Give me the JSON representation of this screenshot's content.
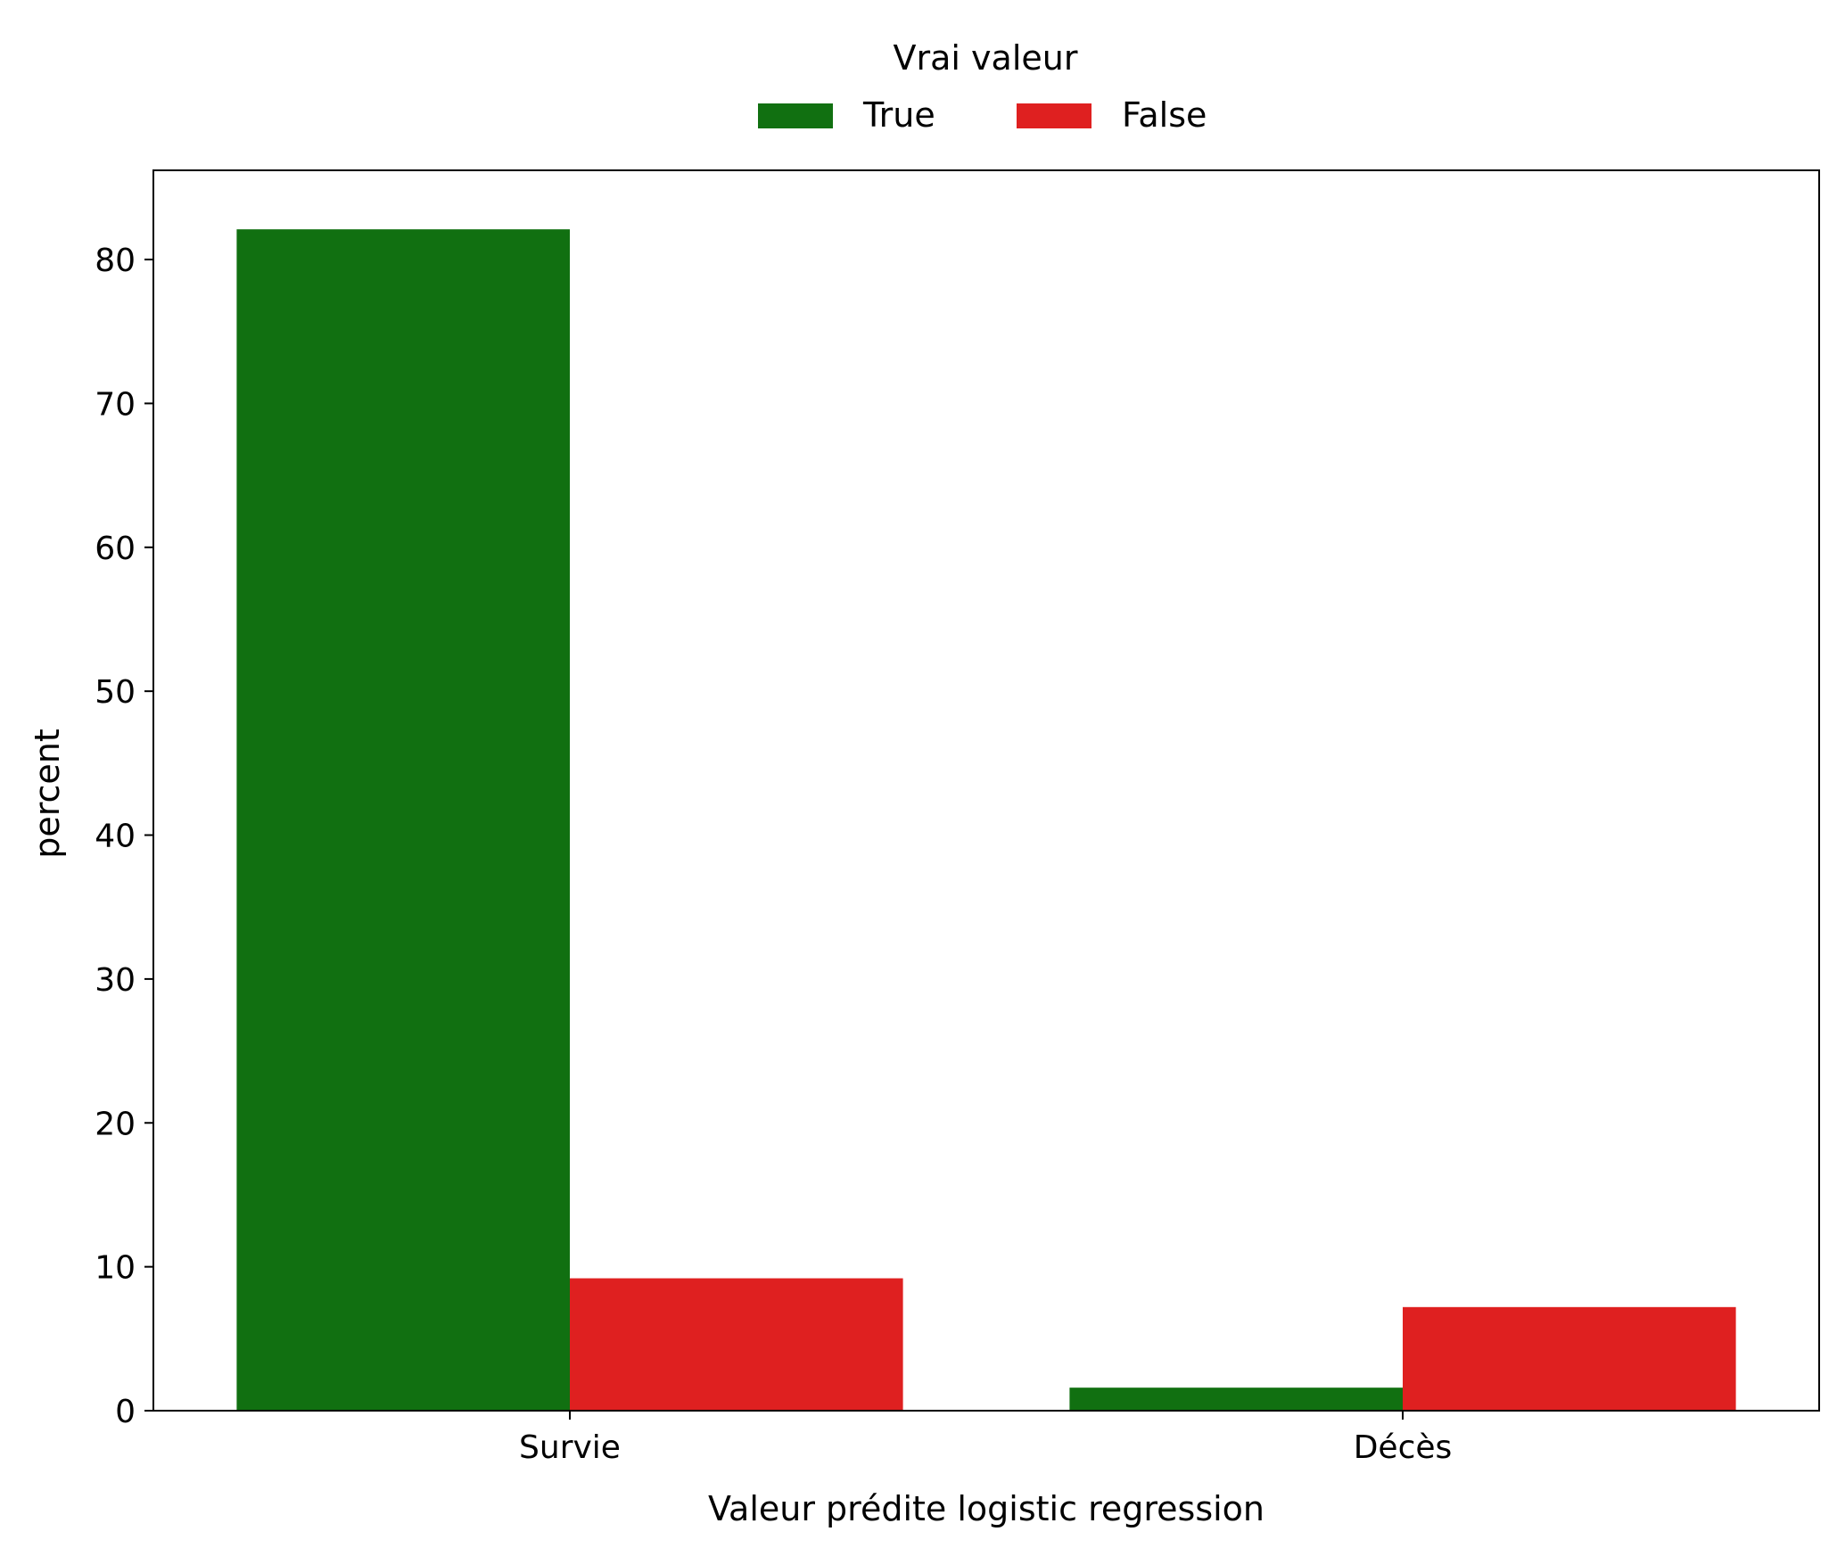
{
  "chart_data": {
    "type": "bar",
    "categories": [
      "Survie",
      "Décès"
    ],
    "series": [
      {
        "name": "True",
        "color": "#117011",
        "values": [
          82.1,
          1.6
        ]
      },
      {
        "name": "False",
        "color": "#df2020",
        "values": [
          9.2,
          7.2
        ]
      }
    ],
    "xlabel": "Valeur prédite logistic regression",
    "ylabel": "percent",
    "ylim": [
      0,
      86.2
    ],
    "yticks": [
      0,
      10,
      20,
      30,
      40,
      50,
      60,
      70,
      80
    ],
    "legend": {
      "title": "Vrai valeur",
      "placement": "top-center"
    },
    "grid": false
  }
}
